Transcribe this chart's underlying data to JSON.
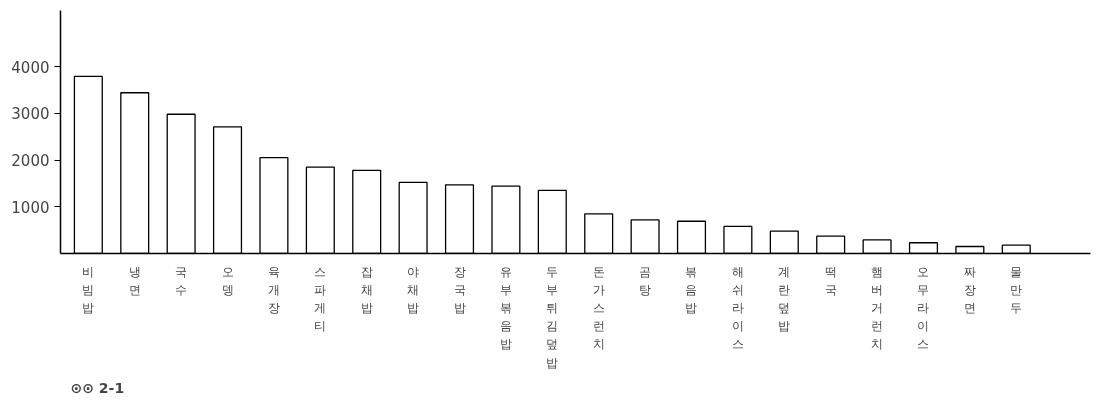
{
  "chart_data": {
    "type": "bar",
    "categories": [
      "비빔밥",
      "냉면",
      "국수",
      "오뎅",
      "육개장",
      "스파게티",
      "잡채밥",
      "야채밥",
      "장국밥",
      "유부볶음밥",
      "두부튀김덮밥",
      "돈가스런치",
      "곰탕",
      "볶음밥",
      "해쉬라이스",
      "계란덮밥",
      "떡국",
      "햄버거런치",
      "오무라이스",
      "짜장면",
      "물만두"
    ],
    "values": [
      3790,
      3440,
      2980,
      2710,
      2050,
      1850,
      1780,
      1520,
      1470,
      1440,
      1350,
      850,
      720,
      690,
      580,
      480,
      370,
      290,
      230,
      150,
      180
    ],
    "color": "#ffffff",
    "ylim": [
      0,
      5200
    ],
    "yticks": [
      1000,
      2000,
      3000,
      4000
    ],
    "grid": false,
    "annotations": [
      "⊙⊙ 2-1"
    ]
  }
}
